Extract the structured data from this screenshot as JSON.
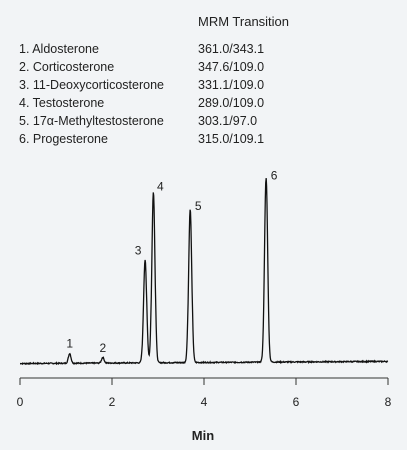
{
  "legend": {
    "header": "MRM Transition",
    "rows": [
      {
        "name": "1. Aldosterone",
        "mrm": "361.0/343.1"
      },
      {
        "name": "2. Corticosterone",
        "mrm": "347.6/109.0"
      },
      {
        "name": "3. 11-Deoxycorticosterone",
        "mrm": "331.1/109.0"
      },
      {
        "name": "4. Testosterone",
        "mrm": "289.0/109.0"
      },
      {
        "name": "5. 17α-Methyltestosterone",
        "mrm": "303.1/97.0"
      },
      {
        "name": "6. Progesterone",
        "mrm": "315.0/109.1"
      }
    ]
  },
  "chart_data": {
    "type": "line",
    "title": "",
    "xlabel": "Min",
    "ylabel": "",
    "xlim": [
      0,
      8
    ],
    "ylim": [
      0,
      100
    ],
    "x_ticks": [
      0,
      2,
      4,
      6,
      8
    ],
    "grid": false,
    "baseline": 2.5,
    "peaks": [
      {
        "label": "1",
        "rt": 1.08,
        "height": 4.5
      },
      {
        "label": "2",
        "rt": 1.8,
        "height": 2.6
      },
      {
        "label": "3",
        "rt": 2.72,
        "height": 47
      },
      {
        "label": "4",
        "rt": 2.9,
        "height": 78
      },
      {
        "label": "5",
        "rt": 3.7,
        "height": 70
      },
      {
        "label": "6",
        "rt": 5.35,
        "height": 84
      }
    ]
  }
}
